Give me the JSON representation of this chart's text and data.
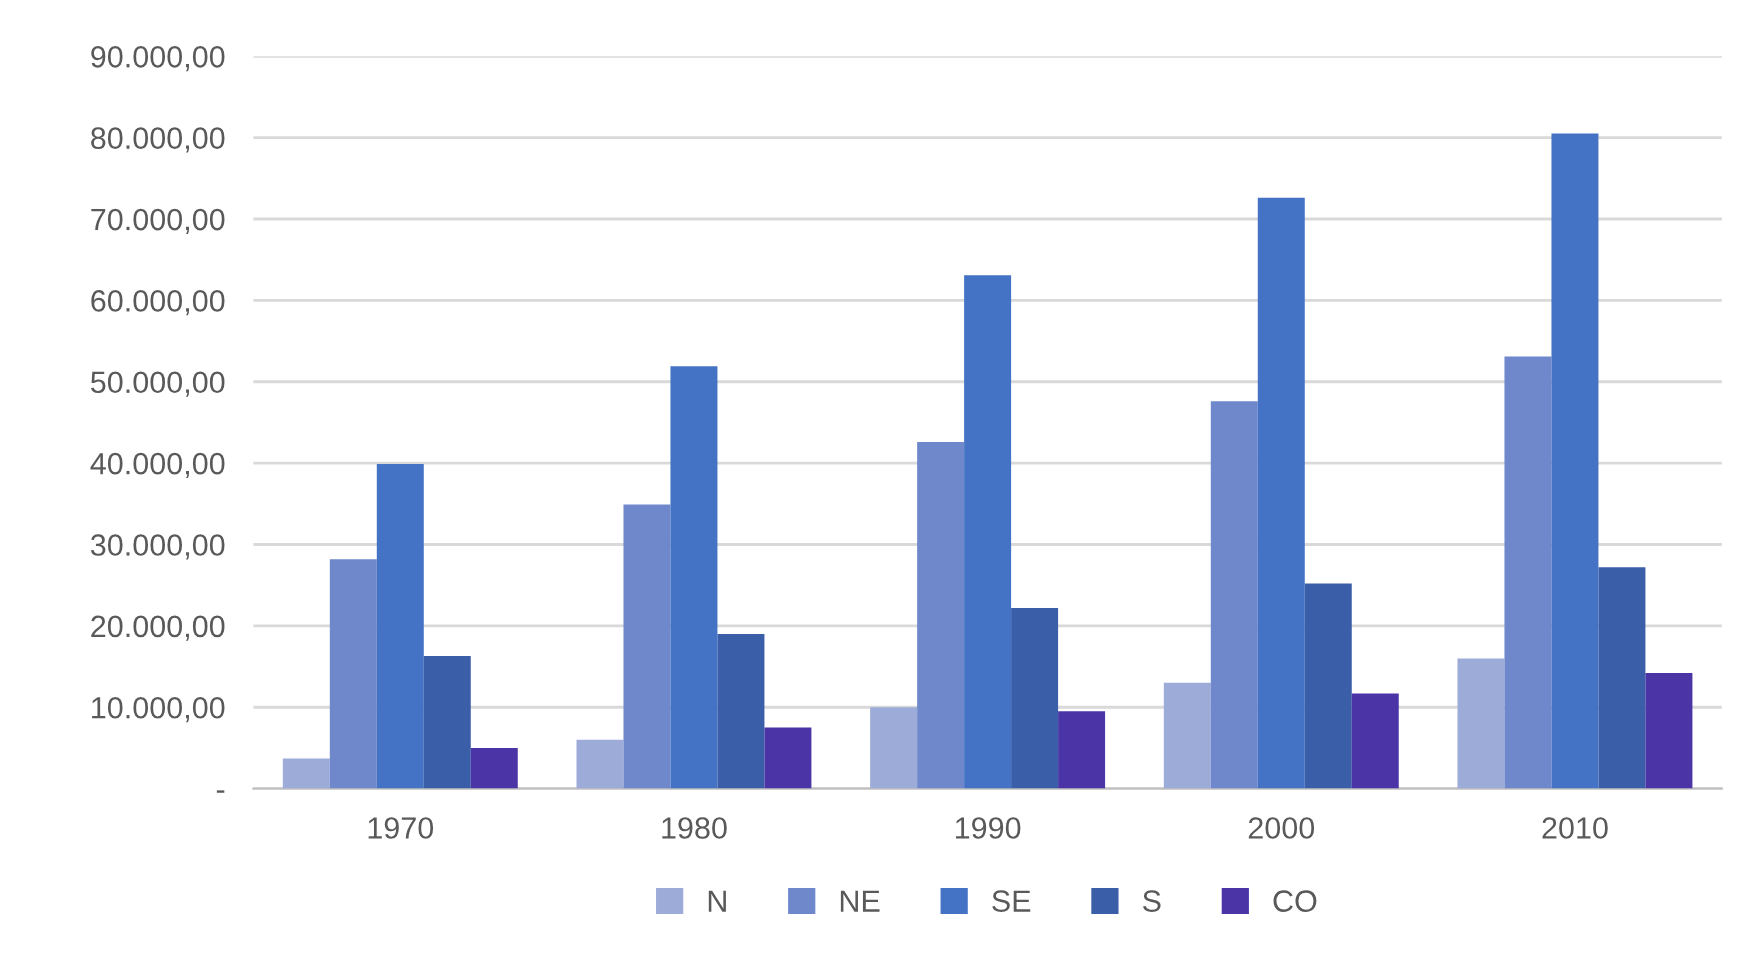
{
  "chart_data": {
    "type": "bar",
    "categories": [
      "1970",
      "1980",
      "1990",
      "2000",
      "2010"
    ],
    "series": [
      {
        "name": "N",
        "color": "#9dabd9",
        "values": [
          3700,
          6000,
          10000,
          13000,
          16000
        ]
      },
      {
        "name": "NE",
        "color": "#6f88cc",
        "values": [
          28200,
          34900,
          42600,
          47600,
          53100
        ]
      },
      {
        "name": "SE",
        "color": "#4472c4",
        "values": [
          39900,
          51900,
          63100,
          72600,
          80500
        ]
      },
      {
        "name": "S",
        "color": "#3a5fa8",
        "values": [
          16300,
          19000,
          22200,
          25200,
          27200
        ]
      },
      {
        "name": "CO",
        "color": "#4b35a6",
        "values": [
          5000,
          7500,
          9500,
          11700,
          14200
        ]
      }
    ],
    "ylim": [
      0,
      90000
    ],
    "yticks": [
      {
        "value": 0,
        "label": "-"
      },
      {
        "value": 10000,
        "label": "10.000,00"
      },
      {
        "value": 20000,
        "label": "20.000,00"
      },
      {
        "value": 30000,
        "label": "30.000,00"
      },
      {
        "value": 40000,
        "label": "40.000,00"
      },
      {
        "value": 50000,
        "label": "50.000,00"
      },
      {
        "value": 60000,
        "label": "60.000,00"
      },
      {
        "value": 70000,
        "label": "70.000,00"
      },
      {
        "value": 80000,
        "label": "80.000,00"
      },
      {
        "value": 90000,
        "label": "90.000,00"
      }
    ],
    "grid": "y",
    "legend": "bottom"
  }
}
